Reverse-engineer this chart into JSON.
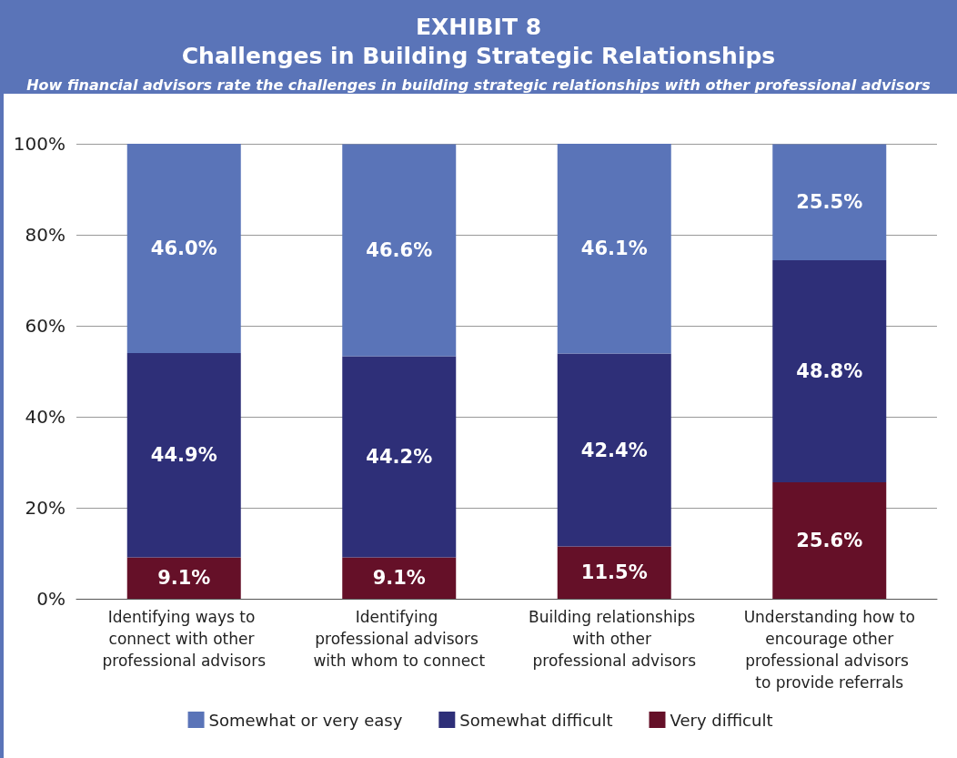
{
  "chart_data": {
    "type": "bar",
    "stacked": true,
    "title": "EXHIBIT 8\nChallenges in Building Strategic Relationships",
    "subtitle": "How financial advisors rate the challenges in building strategic relationships with other professional advisors",
    "categories": [
      "Identifying ways to connect with other professional advisors",
      "Identifying professional advisors with whom to connect",
      "Building relationships with other professional advisors",
      "Understanding how to encourage other professional advisors to provide referrals"
    ],
    "series": [
      {
        "name": "Very difficult",
        "color": "#651028",
        "values": [
          9.1,
          9.1,
          11.5,
          25.6
        ],
        "value_labels": [
          "9.1%",
          "9.1%",
          "11.5%",
          "25.6%"
        ]
      },
      {
        "name": "Somewhat difficult",
        "color": "#2e2f78",
        "values": [
          44.9,
          44.2,
          42.4,
          48.8
        ],
        "value_labels": [
          "44.9%",
          "44.2%",
          "42.4%",
          "48.8%"
        ]
      },
      {
        "name": "Somewhat or very easy",
        "color": "#5a74b8",
        "values": [
          46.0,
          46.6,
          46.1,
          25.5
        ],
        "value_labels": [
          "46.0%",
          "46.6%",
          "46.1%",
          "25.5%"
        ]
      }
    ],
    "ylim": [
      0,
      100
    ],
    "yticks": [
      {
        "value": 0,
        "label": "0%"
      },
      {
        "value": 20,
        "label": "20%"
      },
      {
        "value": 40,
        "label": "40%"
      },
      {
        "value": 60,
        "label": "60%"
      },
      {
        "value": 80,
        "label": "80%"
      },
      {
        "value": 100,
        "label": "100%"
      }
    ],
    "grid": "y",
    "legend": "bottom"
  }
}
